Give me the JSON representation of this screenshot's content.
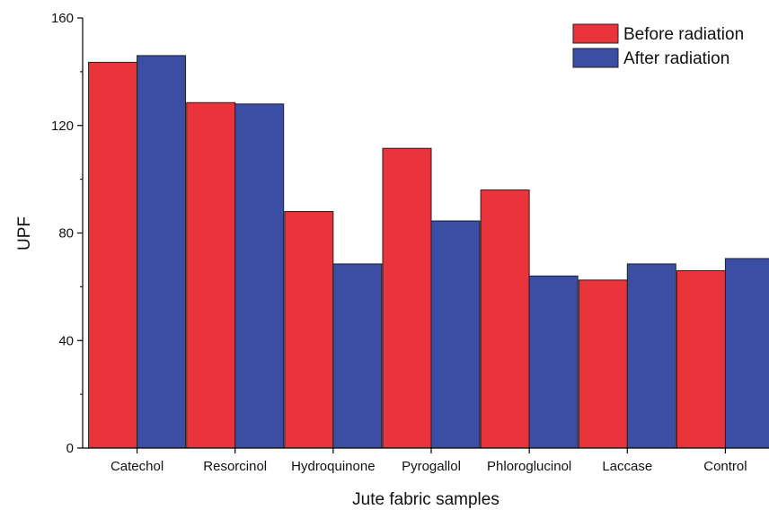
{
  "chart_data": {
    "type": "bar",
    "categories": [
      "Catechol",
      "Resorcinol",
      "Hydroquinone",
      "Pyrogallol",
      "Phloroglucinol",
      "Laccase",
      "Control"
    ],
    "series": [
      {
        "name": "Before radiation",
        "color": "#e8343a",
        "values": [
          143.5,
          128.5,
          88,
          111.5,
          96,
          62.5,
          66
        ]
      },
      {
        "name": "After radiation",
        "color": "#3b4ea3",
        "values": [
          146,
          128,
          68.5,
          84.5,
          64,
          68.5,
          70.5
        ]
      }
    ],
    "xlabel": "Jute fabric samples",
    "ylabel": "UPF",
    "ylim": [
      0,
      160
    ],
    "yticks": [
      "0",
      "40",
      "80",
      "120",
      "160"
    ],
    "legend_position": "top-right",
    "grid": false
  }
}
